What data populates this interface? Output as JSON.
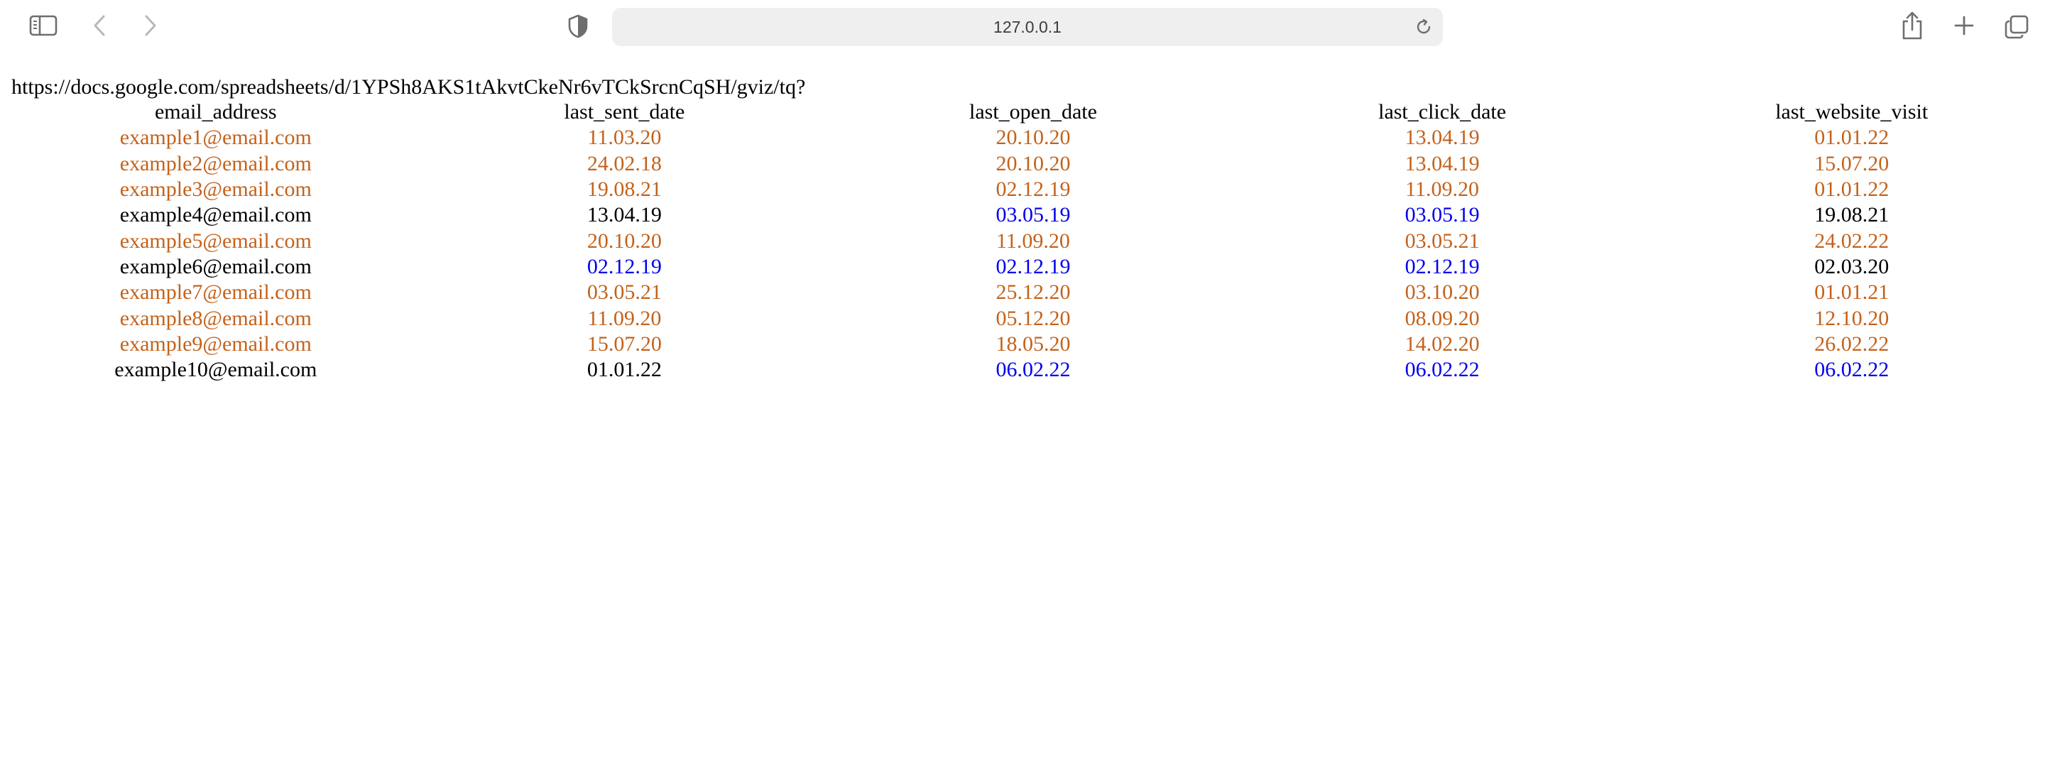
{
  "browser": {
    "address": "127.0.0.1"
  },
  "page": {
    "source_url": "https://docs.google.com/spreadsheets/d/1YPSh8AKS1tAkvtCkeNr6vTCkSrcnCqSH/gviz/tq?",
    "colors": {
      "orange": "#c4621b",
      "blue": "#0000ee",
      "black": "#000000"
    },
    "table": {
      "headers": [
        "email_address",
        "last_sent_date",
        "last_open_date",
        "last_click_date",
        "last_website_visit"
      ],
      "rows": [
        {
          "cells": [
            "example1@email.com",
            "11.03.20",
            "20.10.20",
            "13.04.19",
            "01.01.22"
          ],
          "colors": [
            "orange",
            "orange",
            "orange",
            "orange",
            "orange"
          ]
        },
        {
          "cells": [
            "example2@email.com",
            "24.02.18",
            "20.10.20",
            "13.04.19",
            "15.07.20"
          ],
          "colors": [
            "orange",
            "orange",
            "orange",
            "orange",
            "orange"
          ]
        },
        {
          "cells": [
            "example3@email.com",
            "19.08.21",
            "02.12.19",
            "11.09.20",
            "01.01.22"
          ],
          "colors": [
            "orange",
            "orange",
            "orange",
            "orange",
            "orange"
          ]
        },
        {
          "cells": [
            "example4@email.com",
            "13.04.19",
            "03.05.19",
            "03.05.19",
            "19.08.21"
          ],
          "colors": [
            "black",
            "black",
            "blue",
            "blue",
            "black"
          ]
        },
        {
          "cells": [
            "example5@email.com",
            "20.10.20",
            "11.09.20",
            "03.05.21",
            "24.02.22"
          ],
          "colors": [
            "orange",
            "orange",
            "orange",
            "orange",
            "orange"
          ]
        },
        {
          "cells": [
            "example6@email.com",
            "02.12.19",
            "02.12.19",
            "02.12.19",
            "02.03.20"
          ],
          "colors": [
            "black",
            "blue",
            "blue",
            "blue",
            "black"
          ]
        },
        {
          "cells": [
            "example7@email.com",
            "03.05.21",
            "25.12.20",
            "03.10.20",
            "01.01.21"
          ],
          "colors": [
            "orange",
            "orange",
            "orange",
            "orange",
            "orange"
          ]
        },
        {
          "cells": [
            "example8@email.com",
            "11.09.20",
            "05.12.20",
            "08.09.20",
            "12.10.20"
          ],
          "colors": [
            "orange",
            "orange",
            "orange",
            "orange",
            "orange"
          ]
        },
        {
          "cells": [
            "example9@email.com",
            "15.07.20",
            "18.05.20",
            "14.02.20",
            "26.02.22"
          ],
          "colors": [
            "orange",
            "orange",
            "orange",
            "orange",
            "orange"
          ]
        },
        {
          "cells": [
            "example10@email.com",
            "01.01.22",
            "06.02.22",
            "06.02.22",
            "06.02.22"
          ],
          "colors": [
            "black",
            "black",
            "blue",
            "blue",
            "blue"
          ]
        }
      ]
    }
  },
  "icons": {
    "sidebar": "sidebar-icon",
    "back": "chevron-left-icon",
    "forward": "chevron-right-icon",
    "privacy": "shield-icon",
    "reload": "reload-icon",
    "share": "share-icon",
    "new_tab": "plus-icon",
    "tab_overview": "tabs-icon"
  }
}
